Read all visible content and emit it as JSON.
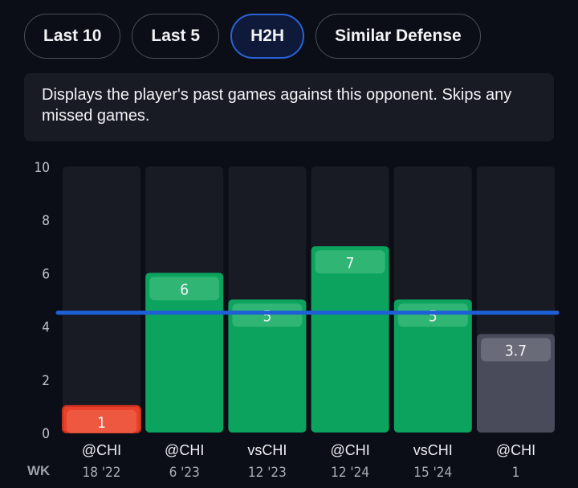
{
  "tabs": [
    {
      "label": "Last 10",
      "active": false
    },
    {
      "label": "Last 5",
      "active": false
    },
    {
      "label": "H2H",
      "active": true
    },
    {
      "label": "Similar Defense",
      "active": false
    }
  ],
  "description": "Displays the player's past games against this opponent. Skips any missed games.",
  "week_label": "WK",
  "colors": {
    "over": "#0ba35e",
    "under": "#e8402b",
    "projection": "#4a4b5a",
    "line": "#1f5fd6",
    "track": "#181a24"
  },
  "chart_data": {
    "type": "bar",
    "title": "",
    "xlabel": "",
    "ylabel": "",
    "ylim": [
      0,
      10
    ],
    "yticks": [
      0,
      2,
      4,
      6,
      8,
      10
    ],
    "grid": false,
    "reference_line": 4.5,
    "categories": [
      "@CHI",
      "@CHI",
      "vsCHI",
      "@CHI",
      "vsCHI",
      "@CHI"
    ],
    "weeks": [
      "18 '22",
      "6 '23",
      "12 '23",
      "12 '24",
      "15 '24",
      "1"
    ],
    "values": [
      1,
      6,
      5,
      7,
      5,
      3.7
    ],
    "value_labels": [
      "1",
      "6",
      "5",
      "7",
      "5",
      "3.7"
    ],
    "status": [
      "under",
      "over",
      "over",
      "over",
      "over",
      "projection"
    ]
  }
}
